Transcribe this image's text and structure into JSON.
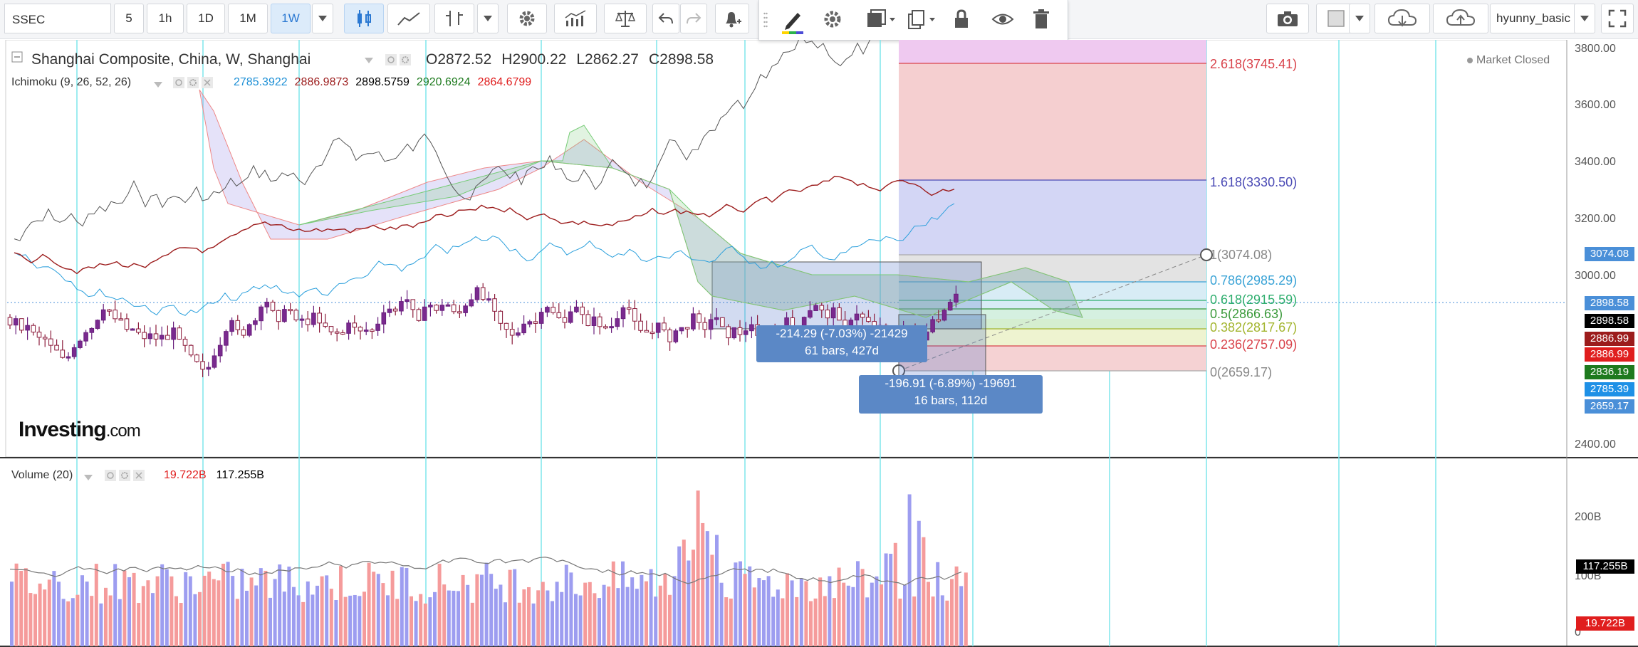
{
  "toolbar": {
    "symbol": "SSEC",
    "intervals": [
      "5",
      "1h",
      "1D",
      "1M",
      "1W"
    ],
    "active_interval": "1W",
    "username": "hyunny_basic"
  },
  "header": {
    "title": "Shanghai Composite, China, W, Shanghai",
    "open_label": "O",
    "open": "2872.52",
    "high_label": "H",
    "high": "2900.22",
    "low_label": "L",
    "low": "2862.27",
    "close_label": "C",
    "close": "2898.58",
    "market_status": "Market Closed"
  },
  "ichimoku": {
    "label": "Ichimoku (9, 26, 52, 26)",
    "values": [
      "2785.3922",
      "2886.9873",
      "2898.5759",
      "2920.6924",
      "2864.6799"
    ],
    "colors": [
      "#1e90d6",
      "#9c1c1c",
      "#000000",
      "#1e7a1e",
      "#e01e1e"
    ]
  },
  "volume": {
    "label": "Volume (20)",
    "value": "19.722B",
    "ma": "117.255B"
  },
  "price_axis": {
    "ticks": [
      "3800.00",
      "3600.00",
      "3400.00",
      "3200.00",
      "3000.00",
      "2400.00"
    ],
    "labels": [
      {
        "text": "3074.08",
        "color": "#4a8fd8"
      },
      {
        "text": "2898.58",
        "color": "#4a8fd8"
      },
      {
        "text": "2898.58",
        "color": "#000000"
      },
      {
        "text": "2886.99",
        "color": "#9c1c1c"
      },
      {
        "text": "2886.99",
        "color": "#e01e1e"
      },
      {
        "text": "2836.19",
        "color": "#1e7a1e"
      },
      {
        "text": "2785.39",
        "color": "#1e90e6"
      },
      {
        "text": "2659.17",
        "color": "#4a8fd8"
      }
    ]
  },
  "volume_axis": {
    "ticks": [
      "200B",
      "100B",
      "0"
    ],
    "labels": [
      {
        "text": "117.255B",
        "color": "#000000"
      },
      {
        "text": "19.722B",
        "color": "#e01e1e"
      }
    ]
  },
  "fibonacci": [
    {
      "text": "2.618(3745.41)",
      "color": "#d9434b"
    },
    {
      "text": "1.618(3330.50)",
      "color": "#4a4ab5"
    },
    {
      "text": "1(3074.08)",
      "color": "#888888"
    },
    {
      "text": "0.786(2985.29)",
      "color": "#3aa3d6"
    },
    {
      "text": "0.618(2915.59)",
      "color": "#2fae6e"
    },
    {
      "text": "0.5(2866.63)",
      "color": "#3b9a3b"
    },
    {
      "text": "0.382(2817.67)",
      "color": "#a3b52f"
    },
    {
      "text": "0.236(2757.09)",
      "color": "#d9434b"
    },
    {
      "text": "0(2659.17)",
      "color": "#888888"
    }
  ],
  "measure_1": {
    "line1": "-214.29 (-7.03%) -21429",
    "line2": "61 bars, 427d"
  },
  "measure_2": {
    "line1": "-196.91 (-6.89%) -19691",
    "line2": "16 bars, 112d"
  },
  "logo": {
    "brand": "Investing",
    "suffix": ".com"
  }
}
